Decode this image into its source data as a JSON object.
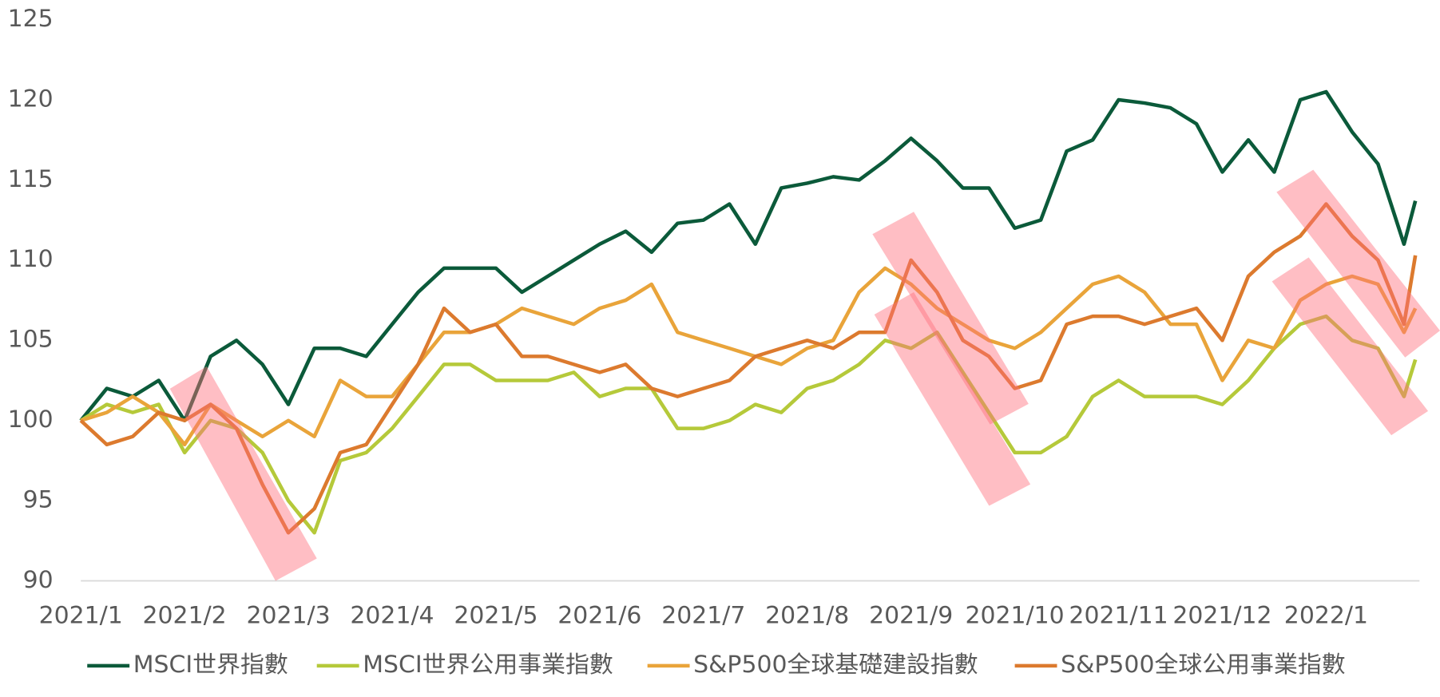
{
  "chart_data": {
    "type": "line",
    "x": [
      0,
      0.25,
      0.5,
      0.75,
      1,
      1.25,
      1.5,
      1.75,
      2,
      2.25,
      2.5,
      2.75,
      3,
      3.25,
      3.5,
      3.75,
      4,
      4.25,
      4.5,
      4.75,
      5,
      5.25,
      5.5,
      5.75,
      6,
      6.25,
      6.5,
      6.75,
      7,
      7.25,
      7.5,
      7.75,
      8,
      8.25,
      8.5,
      8.75,
      9,
      9.25,
      9.5,
      9.75,
      10,
      10.25,
      10.5,
      10.75,
      11,
      11.25,
      11.5,
      11.75,
      12,
      12.25,
      12.5,
      12.75,
      12.86
    ],
    "xlim": [
      0,
      12.9
    ],
    "xticks": [
      {
        "value": 0,
        "label": "2021/1"
      },
      {
        "value": 1,
        "label": "2021/2"
      },
      {
        "value": 2,
        "label": "2021/3"
      },
      {
        "value": 3,
        "label": "2021/4"
      },
      {
        "value": 4,
        "label": "2021/5"
      },
      {
        "value": 5,
        "label": "2021/6"
      },
      {
        "value": 6,
        "label": "2021/7"
      },
      {
        "value": 7,
        "label": "2021/8"
      },
      {
        "value": 8,
        "label": "2021/9"
      },
      {
        "value": 9,
        "label": "2021/10"
      },
      {
        "value": 10,
        "label": "2021/11"
      },
      {
        "value": 11,
        "label": "2021/12"
      },
      {
        "value": 12,
        "label": "2022/1"
      }
    ],
    "ylim": [
      90,
      125
    ],
    "yticks": [
      90,
      95,
      100,
      105,
      110,
      115,
      120,
      125
    ],
    "grid": false,
    "legend": "bottom",
    "series": [
      {
        "name": "MSCI世界指數",
        "color": "#0b5a3a",
        "values": [
          100,
          102,
          101.5,
          102.5,
          100,
          104,
          105,
          103.5,
          101,
          104.5,
          104.5,
          104,
          106,
          108,
          109.5,
          109.5,
          109.5,
          108,
          109,
          110,
          111,
          111.8,
          110.5,
          112.3,
          112.5,
          113.5,
          111,
          114.5,
          114.8,
          115.2,
          115,
          116.2,
          117.6,
          116.2,
          114.5,
          114.5,
          112,
          112.5,
          116.8,
          117.5,
          120,
          119.8,
          119.5,
          118.5,
          115.5,
          117.5,
          115.5,
          120,
          120.5,
          118,
          116,
          111,
          113.7
        ]
      },
      {
        "name": "MSCI世界公用事業指數",
        "color": "#b5c93a",
        "values": [
          100,
          101,
          100.5,
          101,
          98,
          100,
          99.5,
          98,
          95,
          93,
          97.5,
          98,
          99.5,
          101.5,
          103.5,
          103.5,
          102.5,
          102.5,
          102.5,
          103,
          101.5,
          102,
          102,
          99.5,
          99.5,
          100,
          101,
          100.5,
          102,
          102.5,
          103.5,
          105,
          104.5,
          105.5,
          103,
          100.5,
          98,
          98,
          99,
          101.5,
          102.5,
          101.5,
          101.5,
          101.5,
          101,
          102.5,
          104.5,
          106,
          106.5,
          105,
          104.5,
          101.5,
          103.8
        ]
      },
      {
        "name": "S&P500全球基礎建設指數",
        "color": "#e9a43a",
        "values": [
          100,
          100.5,
          101.5,
          100.5,
          98.5,
          101,
          100,
          99,
          100,
          99,
          102.5,
          101.5,
          101.5,
          103.5,
          105.5,
          105.5,
          106,
          107,
          106.5,
          106,
          107,
          107.5,
          108.5,
          105.5,
          105,
          104.5,
          104,
          103.5,
          104.5,
          105,
          108,
          109.5,
          108.5,
          107,
          106,
          105,
          104.5,
          105.5,
          107,
          108.5,
          109,
          108,
          106,
          106,
          102.5,
          105,
          104.5,
          107.5,
          108.5,
          109,
          108.5,
          105.5,
          107
        ]
      },
      {
        "name": "S&P500全球公用事業指數",
        "color": "#dc7a2e",
        "values": [
          100,
          98.5,
          99,
          100.5,
          100,
          101,
          99.5,
          96,
          93,
          94.5,
          98,
          98.5,
          101,
          103.5,
          107,
          105.5,
          106,
          104,
          104,
          103.5,
          103,
          103.5,
          102,
          101.5,
          102,
          102.5,
          104,
          104.5,
          105,
          104.5,
          105.5,
          105.5,
          110,
          108,
          105,
          104,
          102,
          102.5,
          106,
          106.5,
          106.5,
          106,
          106.5,
          107,
          105,
          109,
          110.5,
          111.5,
          113.5,
          111.5,
          110,
          106,
          110.3
        ]
      }
    ]
  }
}
